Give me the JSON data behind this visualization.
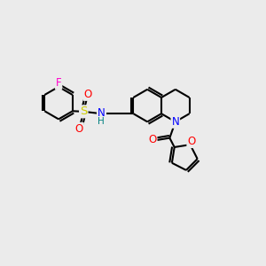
{
  "background_color": "#ebebeb",
  "bond_color": "#000000",
  "bond_width": 1.5,
  "atom_colors": {
    "F": "#ff00cc",
    "S": "#cccc00",
    "O": "#ff0000",
    "N": "#0000ff",
    "H": "#008080",
    "C": "#000000"
  },
  "font_size": 8.5,
  "figsize": [
    3.0,
    3.0
  ],
  "dpi": 100
}
